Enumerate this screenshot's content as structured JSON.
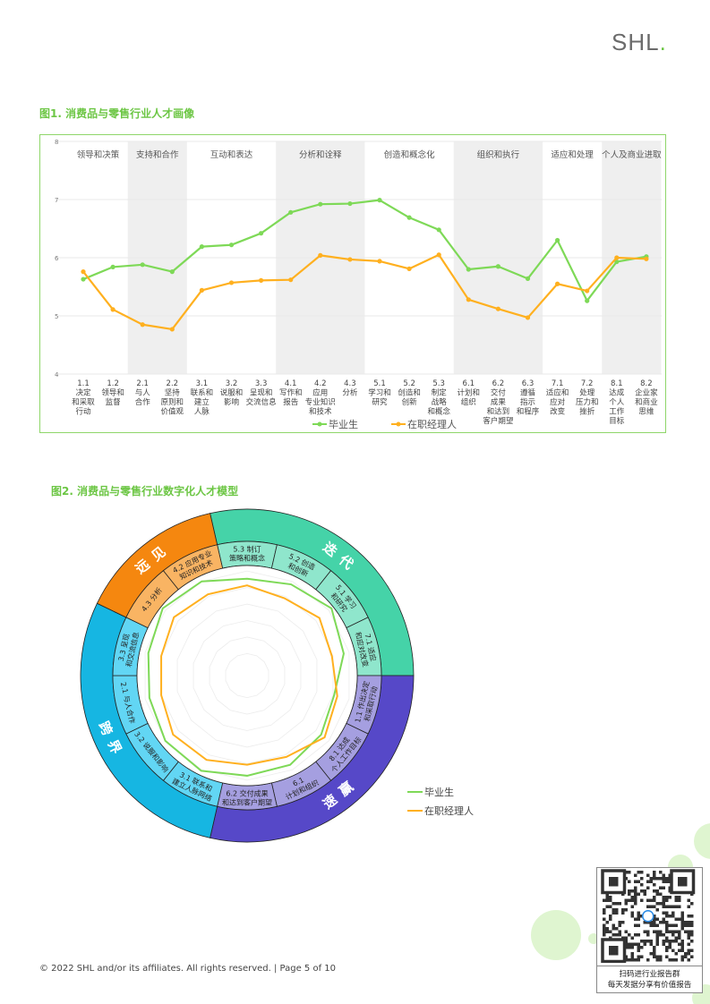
{
  "header": {
    "logo_text": "SHL",
    "logo_dot": "."
  },
  "figure1": {
    "title": "图1. 消费品与零售行业人才画像"
  },
  "figure2": {
    "title": "图2. 消费品与零售行业数字化人才模型"
  },
  "colors": {
    "graduate": "#7ed957",
    "manager": "#ffb01f",
    "green_accent": "#6cc644",
    "teal": "#45d3a8",
    "purple": "#5648c8",
    "cyan": "#16b6e2",
    "orange": "#f5870f"
  },
  "chart_data": [
    {
      "type": "line",
      "title": "图1. 消费品与零售行业人才画像",
      "ylim": [
        4,
        8
      ],
      "yticks": [
        "4",
        "5",
        "6",
        "7",
        "8"
      ],
      "groups": [
        {
          "label": "领导和决策",
          "from": 0,
          "to": 1,
          "shaded": false
        },
        {
          "label": "支持和合作",
          "from": 2,
          "to": 3,
          "shaded": true
        },
        {
          "label": "互动和表达",
          "from": 4,
          "to": 6,
          "shaded": false
        },
        {
          "label": "分析和诠释",
          "from": 7,
          "to": 9,
          "shaded": true
        },
        {
          "label": "创造和概念化",
          "from": 10,
          "to": 12,
          "shaded": false
        },
        {
          "label": "组织和执行",
          "from": 13,
          "to": 15,
          "shaded": true
        },
        {
          "label": "适应和处理",
          "from": 16,
          "to": 17,
          "shaded": false
        },
        {
          "label": "个人及商业进取",
          "from": 18,
          "to": 19,
          "shaded": true
        }
      ],
      "categories": [
        [
          "1.1",
          "决定",
          "和采取",
          "行动"
        ],
        [
          "1.2",
          "领导和",
          "监督"
        ],
        [
          "2.1",
          "与人",
          "合作"
        ],
        [
          "2.2",
          "坚持",
          "原则和",
          "价值观"
        ],
        [
          "3.1",
          "联系和",
          "建立",
          "人脉"
        ],
        [
          "3.2",
          "说服和",
          "影响"
        ],
        [
          "3.3",
          "呈现和",
          "交流信息"
        ],
        [
          "4.1",
          "写作和",
          "报告"
        ],
        [
          "4.2",
          "应用",
          "专业知识",
          "和技术"
        ],
        [
          "4.3",
          "分析"
        ],
        [
          "5.1",
          "学习和",
          "研究"
        ],
        [
          "5.2",
          "创造和",
          "创新"
        ],
        [
          "5.3",
          "制定",
          "战略",
          "和概念"
        ],
        [
          "6.1",
          "计划和",
          "组织"
        ],
        [
          "6.2",
          "交付",
          "成果",
          "和达到",
          "客户期望"
        ],
        [
          "6.3",
          "遵循",
          "指示",
          "和程序"
        ],
        [
          "7.1",
          "适应和",
          "应对",
          "改变"
        ],
        [
          "7.2",
          "处理",
          "压力和",
          "挫折"
        ],
        [
          "8.1",
          "达成",
          "个人",
          "工作",
          "目标"
        ],
        [
          "8.2",
          "企业家",
          "和商业",
          "思维"
        ]
      ],
      "series": [
        {
          "name": "毕业生",
          "color": "#7ed957",
          "values": [
            5.63,
            5.84,
            5.88,
            5.76,
            6.19,
            6.22,
            6.42,
            6.78,
            6.92,
            6.93,
            6.99,
            6.69,
            6.48,
            5.8,
            5.85,
            5.64,
            6.3,
            5.26,
            5.93,
            6.02
          ]
        },
        {
          "name": "在职经理人",
          "color": "#ffb01f",
          "values": [
            5.76,
            5.11,
            4.85,
            4.77,
            5.44,
            5.57,
            5.61,
            5.62,
            6.04,
            5.97,
            5.94,
            5.81,
            6.05,
            5.28,
            5.12,
            4.97,
            5.55,
            5.43,
            6.0,
            5.98
          ]
        }
      ],
      "legend": "bottom-center"
    },
    {
      "type": "radar",
      "title": "图2. 消费品与零售行业数字化人才模型",
      "groups": [
        {
          "label": "迭代",
          "color": "#45d3a8",
          "light": "#8fe6cc",
          "segments": [
            0,
            1,
            2,
            3
          ]
        },
        {
          "label": "速赢",
          "color": "#5648c8",
          "light": "#a59fe0",
          "segments": [
            4,
            5,
            6,
            7
          ]
        },
        {
          "label": "跨界",
          "color": "#16b6e2",
          "light": "#62d6f4",
          "segments": [
            8,
            9,
            10,
            11
          ]
        },
        {
          "label": "远见",
          "color": "#f5870f",
          "light": "#f9b463",
          "segments": [
            12,
            13
          ]
        }
      ],
      "axes": [
        [
          "5.3 制订",
          "策略和概念"
        ],
        [
          "5.2 创造",
          "和创新"
        ],
        [
          "5.1 学习",
          "和研究"
        ],
        [
          "7.1 适应",
          "和应对改变"
        ],
        [
          "1.1 作出决定",
          "和采取行动"
        ],
        [
          "8.1 达成",
          "个人工作目标"
        ],
        [
          "6.1",
          "计划和组织"
        ],
        [
          "6.2 交付成果",
          "和达到客户期望"
        ],
        [
          "3.1 联系和",
          "建立人脉网络"
        ],
        [
          "3.2 说服和影响"
        ],
        [
          "2.1 与人合作"
        ],
        [
          "3.3 呈现",
          "和交流信息"
        ],
        [
          "4.3 分析"
        ],
        [
          "4.2 应用专业",
          "知识和技术"
        ]
      ],
      "series": [
        {
          "name": "毕业生",
          "color": "#7ed957",
          "values": [
            0.88,
            0.92,
            0.98,
            0.9,
            0.81,
            0.86,
            0.9,
            0.91,
            0.96,
            0.95,
            0.91,
            0.92,
            0.98,
            0.95
          ]
        },
        {
          "name": "在职经理人",
          "color": "#ffb01f",
          "values": [
            0.82,
            0.78,
            0.84,
            0.79,
            0.84,
            0.9,
            0.82,
            0.81,
            0.85,
            0.86,
            0.8,
            0.8,
            0.85,
            0.82
          ]
        }
      ],
      "legend": "right"
    }
  ],
  "footer": {
    "text": "© 2022 SHL and/or its affiliates. All rights reserved. | Page 5 of 10"
  },
  "qr": {
    "caption1": "扫码进行业报告群",
    "caption2": "每天发据分享有价值报告"
  }
}
